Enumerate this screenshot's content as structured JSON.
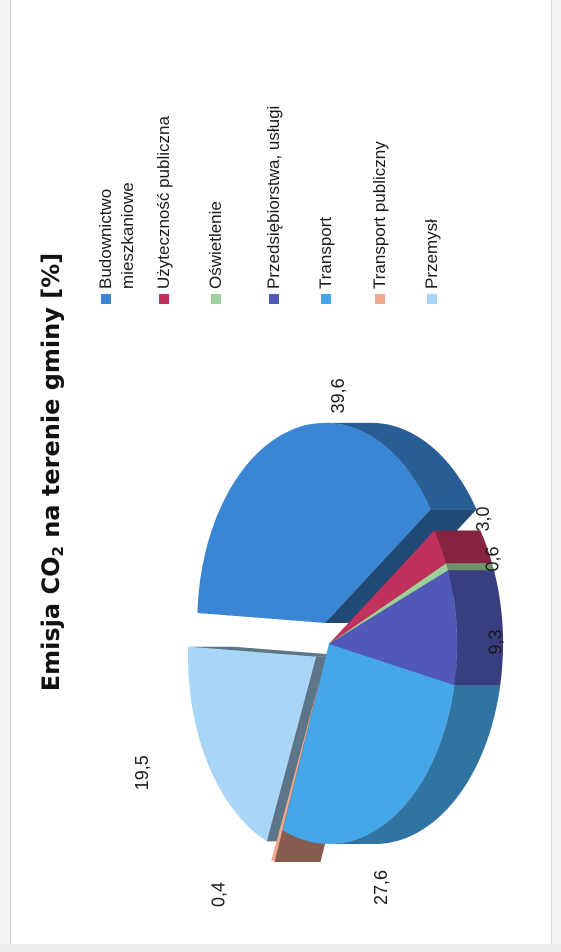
{
  "chart_data": {
    "type": "pie",
    "title_main": "Emisja CO",
    "title_sub": "2",
    "title_rest": " na terenie gminy [%]",
    "legend_position": "right",
    "slices": [
      {
        "name": "Budownictwo mieszkaniowe",
        "value": 39.6,
        "label": "39,6",
        "color": "#3a86d4"
      },
      {
        "name": "Użyteczność publiczna",
        "value": 3.0,
        "label": "3,0",
        "color": "#c0325c"
      },
      {
        "name": "Oświetlenie",
        "value": 0.6,
        "label": "0,6",
        "color": "#9ed19a"
      },
      {
        "name": "Przedsiębiorstwa, usługi",
        "value": 9.3,
        "label": "9,3",
        "color": "#5159b8"
      },
      {
        "name": "Transport",
        "value": 27.6,
        "label": "27,6",
        "color": "#45a6e8"
      },
      {
        "name": "Transport publiczny",
        "value": 0.4,
        "label": "0,4",
        "color": "#f1a88e"
      },
      {
        "name": "Przemysł",
        "value": 19.5,
        "label": "19,5",
        "color": "#a9d5f7"
      }
    ]
  }
}
